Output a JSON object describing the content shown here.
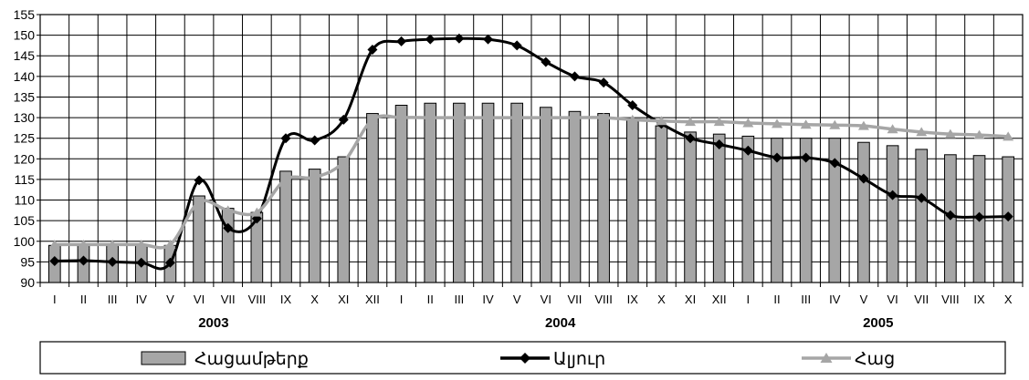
{
  "chart_data": {
    "type": "bar+line",
    "ylim": [
      90,
      155
    ],
    "yticks": [
      90,
      95,
      100,
      105,
      110,
      115,
      120,
      125,
      130,
      135,
      140,
      145,
      150,
      155
    ],
    "grid": true,
    "legend_position": "bottom",
    "categories": [
      "I",
      "II",
      "III",
      "IV",
      "V",
      "VI",
      "VII",
      "VIII",
      "IX",
      "X",
      "XI",
      "XII",
      "I",
      "II",
      "III",
      "IV",
      "V",
      "VI",
      "VII",
      "VIII",
      "IX",
      "X",
      "XI",
      "XII",
      "I",
      "II",
      "III",
      "IV",
      "V",
      "VI",
      "VII",
      "VIII",
      "IX",
      "X"
    ],
    "years": [
      {
        "label": "2003",
        "start": 0,
        "end": 11
      },
      {
        "label": "2004",
        "start": 12,
        "end": 23
      },
      {
        "label": "2005",
        "start": 24,
        "end": 33
      }
    ],
    "series": [
      {
        "name": "Հացամթերք",
        "kind": "bar",
        "color": "#a6a6a6",
        "values": [
          99,
          99,
          99,
          99,
          99,
          111,
          108,
          107,
          117,
          117.5,
          120.5,
          131,
          133,
          133.5,
          133.5,
          133.5,
          133.5,
          132.5,
          131.5,
          131,
          129.5,
          128,
          126.5,
          126,
          125.5,
          125,
          125,
          125,
          124,
          123.2,
          122.3,
          121,
          120.8,
          120.5
        ]
      },
      {
        "name": "Ալյուր",
        "kind": "line",
        "color": "#000000",
        "marker": "diamond",
        "values": [
          95.2,
          95.3,
          95,
          94.8,
          94.8,
          114.8,
          103.2,
          105.5,
          125,
          124.5,
          129.5,
          146.5,
          148.5,
          149,
          149.2,
          149,
          147.5,
          143.5,
          140,
          138.5,
          133,
          128.5,
          125,
          123.5,
          122,
          120.3,
          120.3,
          119,
          115.2,
          111.2,
          110.5,
          106.3,
          105.9,
          106
        ]
      },
      {
        "name": "Հաց",
        "kind": "line",
        "color": "#a6a6a6",
        "marker": "triangle",
        "values": [
          99.2,
          99.2,
          99.2,
          99.2,
          99.2,
          109.5,
          107.5,
          107,
          115,
          115.5,
          119.2,
          129.5,
          130,
          130,
          130,
          130,
          130,
          130,
          130,
          130,
          129.5,
          129.2,
          129,
          129,
          128.7,
          128.5,
          128.3,
          128.2,
          128,
          127.2,
          126.5,
          126,
          125.8,
          125.4
        ]
      }
    ]
  }
}
